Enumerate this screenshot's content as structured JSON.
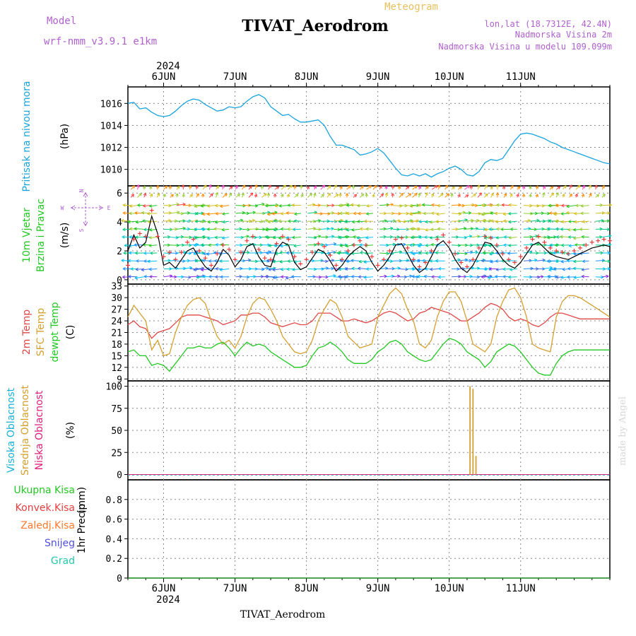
{
  "header": {
    "model_label": "Model",
    "model_name": "wrf-nmm_v3.9.1 e1km",
    "title": "TIVAT_Aerodrom",
    "meteogram_label": "Meteogram",
    "lonlat": "lon,lat (18.7312E, 42.4N)",
    "elev1": "Nadmorska Visina 2m",
    "elev2": "Nadmorska Visina u modelu 109.099m"
  },
  "footer": {
    "station": "TIVAT_Aerodrom",
    "credit": "made by Angel"
  },
  "time_axis": {
    "year": "2024",
    "days": [
      "6JUN",
      "7JUN",
      "8JUN",
      "9JUN",
      "10JUN",
      "11JUN"
    ],
    "range_hours": [
      -12,
      150
    ]
  },
  "colors": {
    "pressure": "#1aa3dd",
    "wind_speed": "#000000",
    "gust": "#e83c3c",
    "temp2m": "#e04848",
    "sfc_temp": "#d4a030",
    "dewpt": "#22c822",
    "cloud_mid": "#d4a030",
    "cloud_high": "#1ab0d8",
    "cloud_low": "#e0207a",
    "rain_total": "#22c822",
    "rain_conv": "#e83c3c",
    "rain_frz": "#ff7a2a",
    "snow": "#5050e0",
    "graupel": "#22c8a8",
    "header_purple": "#b060d0",
    "header_gold": "#e8c060"
  },
  "chart_data": [
    {
      "type": "line",
      "id": "pressure",
      "ylabel": "Pritisak na nivou mora",
      "unit": "(hPa)",
      "ylim": [
        1008.5,
        1017.5
      ],
      "yticks": [
        1010,
        1012,
        1014,
        1016
      ],
      "x": [
        -12,
        -10,
        -8,
        -6,
        -4,
        -2,
        0,
        2,
        4,
        6,
        8,
        10,
        12,
        14,
        16,
        18,
        20,
        22,
        24,
        26,
        28,
        30,
        32,
        34,
        36,
        38,
        40,
        42,
        44,
        46,
        48,
        50,
        52,
        54,
        56,
        58,
        60,
        62,
        64,
        66,
        68,
        70,
        72,
        74,
        76,
        78,
        80,
        82,
        84,
        86,
        88,
        90,
        92,
        94,
        96,
        98,
        100,
        102,
        104,
        106,
        108,
        110,
        112,
        114,
        116,
        118,
        120,
        122,
        124,
        126,
        128,
        130,
        132,
        134,
        136,
        138,
        140,
        142,
        144,
        146,
        148,
        150
      ],
      "series": [
        {
          "values": [
            1016.0,
            1016.1,
            1015.5,
            1015.6,
            1015.2,
            1014.9,
            1014.8,
            1014.9,
            1015.3,
            1015.8,
            1016.2,
            1016.4,
            1016.3,
            1015.9,
            1015.6,
            1015.3,
            1015.4,
            1015.7,
            1015.6,
            1015.7,
            1016.2,
            1016.6,
            1016.8,
            1016.5,
            1015.7,
            1015.3,
            1014.9,
            1015.0,
            1014.6,
            1014.3,
            1014.3,
            1014.4,
            1014.5,
            1014.0,
            1013.0,
            1012.2,
            1012.2,
            1012.0,
            1011.8,
            1011.3,
            1011.4,
            1011.6,
            1011.9,
            1011.5,
            1010.8,
            1010.1,
            1009.5,
            1009.4,
            1009.6,
            1009.4,
            1009.6,
            1009.3,
            1009.6,
            1009.8,
            1010.1,
            1010.3,
            1010.0,
            1009.5,
            1009.4,
            1009.8,
            1010.6,
            1010.9,
            1010.8,
            1011.0,
            1011.8,
            1012.6,
            1013.2,
            1013.3,
            1013.2,
            1013.0,
            1012.8,
            1012.5,
            1012.3,
            1012.0,
            1011.8,
            1011.6,
            1011.4,
            1011.2,
            1011.0,
            1010.8,
            1010.6,
            1010.5
          ]
        }
      ]
    },
    {
      "type": "line",
      "id": "wind",
      "ylabel": "10m Vjetar",
      "ylabel2": "Brzina i Pravac",
      "unit": "(m/s)",
      "ylim": [
        -0.3,
        6.5
      ],
      "yticks": [
        0,
        2,
        4,
        6
      ],
      "compass": {
        "n": "N",
        "w": "W",
        "e": "E",
        "s": "S"
      },
      "x": [
        -12,
        -10,
        -8,
        -6,
        -4,
        -2,
        0,
        2,
        4,
        6,
        8,
        10,
        12,
        14,
        16,
        18,
        20,
        22,
        24,
        26,
        28,
        30,
        32,
        34,
        36,
        38,
        40,
        42,
        44,
        46,
        48,
        50,
        52,
        54,
        56,
        58,
        60,
        62,
        64,
        66,
        68,
        70,
        72,
        74,
        76,
        78,
        80,
        82,
        84,
        86,
        88,
        90,
        92,
        94,
        96,
        98,
        100,
        102,
        104,
        106,
        108,
        110,
        112,
        114,
        116,
        118,
        120,
        122,
        124,
        126,
        128,
        130,
        132,
        134,
        136,
        138,
        140,
        142,
        144,
        146,
        148,
        150
      ],
      "series": [
        {
          "values": [
            2.0,
            3.1,
            2.2,
            2.6,
            4.4,
            3.2,
            1.0,
            1.2,
            0.8,
            1.4,
            2.0,
            2.2,
            1.5,
            0.9,
            0.6,
            1.2,
            2.1,
            1.7,
            0.9,
            1.4,
            2.3,
            2.5,
            1.6,
            1.0,
            0.9,
            2.1,
            2.6,
            2.4,
            1.2,
            0.7,
            0.9,
            1.5,
            2.1,
            1.9,
            1.3,
            0.6,
            1.0,
            1.6,
            2.0,
            2.3,
            2.0,
            1.2,
            0.6,
            1.0,
            1.6,
            2.4,
            2.5,
            1.8,
            1.0,
            0.5,
            0.8,
            1.6,
            2.4,
            2.7,
            2.2,
            1.4,
            0.8,
            0.5,
            1.0,
            1.8,
            2.6,
            2.5,
            2.0,
            1.4,
            1.0,
            0.8,
            1.2,
            1.8,
            2.4,
            2.6,
            2.2,
            1.8,
            1.6,
            1.5,
            1.4,
            1.6,
            1.8,
            2.0,
            2.2,
            2.3,
            2.4,
            2.3
          ]
        },
        {
          "values": [
            1.0,
            2.8,
            3.2,
            3.0,
            4.8,
            3.0,
            1.6,
            1.9,
            1.4,
            1.9,
            2.6,
            2.8,
            2.0,
            1.5,
            1.0,
            1.8,
            2.4,
            2.1,
            1.4,
            1.9,
            2.7,
            3.0,
            2.1,
            1.5,
            1.4,
            2.5,
            3.0,
            2.8,
            1.6,
            1.1,
            1.4,
            1.9,
            2.5,
            2.3,
            1.7,
            1.0,
            1.4,
            2.0,
            2.4,
            2.7,
            2.4,
            1.6,
            1.0,
            1.4,
            2.0,
            2.8,
            2.9,
            2.2,
            1.4,
            0.9,
            1.2,
            2.0,
            2.8,
            3.1,
            2.6,
            1.8,
            1.2,
            0.9,
            1.4,
            2.2,
            3.0,
            2.9,
            2.4,
            1.8,
            1.4,
            1.2,
            1.6,
            2.2,
            2.8,
            3.0,
            2.6,
            2.2,
            2.0,
            1.9,
            1.8,
            2.0,
            2.2,
            2.4,
            2.6,
            2.7,
            2.8,
            2.7
          ]
        }
      ]
    },
    {
      "type": "line",
      "id": "temperature",
      "ylabel": "2m Temp",
      "ylabel2": "SFC Temp",
      "ylabel3": "dewpt Temp",
      "unit": "(C)",
      "ylim": [
        8.5,
        33.5
      ],
      "yticks": [
        9,
        12,
        15,
        18,
        21,
        24,
        27,
        30,
        33
      ],
      "x": [
        -12,
        -10,
        -8,
        -6,
        -4,
        -2,
        0,
        2,
        4,
        6,
        8,
        10,
        12,
        14,
        16,
        18,
        20,
        22,
        24,
        26,
        28,
        30,
        32,
        34,
        36,
        38,
        40,
        42,
        44,
        46,
        48,
        50,
        52,
        54,
        56,
        58,
        60,
        62,
        64,
        66,
        68,
        70,
        72,
        74,
        76,
        78,
        80,
        82,
        84,
        86,
        88,
        90,
        92,
        94,
        96,
        98,
        100,
        102,
        104,
        106,
        108,
        110,
        112,
        114,
        116,
        118,
        120,
        122,
        124,
        126,
        128,
        130,
        132,
        134,
        136,
        138,
        140,
        142,
        144,
        146,
        148,
        150
      ],
      "series": [
        {
          "values": [
            23,
            24,
            22.5,
            22,
            19.5,
            21,
            21.5,
            22,
            23.5,
            25,
            25.5,
            25.5,
            25.5,
            25,
            24.5,
            24,
            23,
            23.5,
            24,
            25.5,
            25.5,
            26,
            26,
            25,
            23.5,
            23,
            22.5,
            23,
            23.5,
            23,
            23,
            24,
            26,
            26,
            26,
            25,
            24,
            24,
            24.5,
            24,
            23.5,
            24,
            25,
            26,
            26.5,
            26,
            25,
            24,
            24.5,
            26,
            26.5,
            27.5,
            27,
            26.5,
            26,
            25,
            24,
            24,
            25,
            26,
            27.5,
            28.5,
            28,
            27,
            25,
            24,
            24.5,
            24,
            23,
            22.5,
            23.5,
            25,
            26,
            26,
            25.5,
            25,
            24.5,
            24.5,
            24.5,
            24.5,
            24.5,
            24.5
          ]
        },
        {
          "values": [
            25,
            28,
            26,
            24,
            16.5,
            19,
            15,
            15.5,
            21,
            25,
            28,
            29.5,
            30,
            28.5,
            24,
            20,
            18,
            19,
            17,
            20,
            25,
            28.5,
            30,
            29.5,
            27,
            24,
            20,
            18,
            16,
            15.5,
            16,
            19,
            24,
            27,
            29.5,
            28.5,
            25,
            20,
            18.5,
            17,
            17.5,
            18,
            25,
            28,
            31,
            32.5,
            31,
            27,
            24,
            18,
            17,
            19,
            25,
            29,
            31.5,
            31.5,
            29,
            24,
            18,
            17,
            16,
            18,
            25,
            29,
            32,
            32.5,
            30,
            25,
            18,
            17,
            16.5,
            16,
            25,
            29,
            30.5,
            30.5,
            30,
            29,
            28,
            27,
            26,
            25
          ]
        },
        {
          "values": [
            16,
            16.5,
            15,
            15,
            12.5,
            13,
            12.5,
            11,
            13,
            15,
            17,
            17,
            17.5,
            17,
            17,
            18,
            18.5,
            17,
            15,
            17,
            18.5,
            17.5,
            18,
            17.5,
            16,
            15,
            14,
            13,
            12,
            12,
            12.5,
            15,
            17,
            17.5,
            18.5,
            17.5,
            16,
            14,
            13,
            13,
            13,
            14,
            16,
            17,
            18.5,
            19,
            18,
            16,
            15,
            14,
            13.5,
            14,
            16,
            18,
            19.5,
            19,
            18,
            16,
            15,
            14,
            12,
            13.5,
            16,
            17,
            18,
            17.5,
            16,
            14,
            12,
            10.5,
            10,
            10,
            13,
            15,
            16,
            16.5,
            16.5,
            16.5,
            16.5,
            16.5,
            16.5,
            16.5
          ]
        }
      ]
    },
    {
      "type": "bar",
      "id": "cloud",
      "ylabel": "Visoka Oblacnost",
      "ylabel2": "Srednja Oblacnost",
      "ylabel3": "Niska Oblacnost",
      "unit": "(%)",
      "ylim": [
        -6,
        106
      ],
      "yticks": [
        0,
        25,
        50,
        75,
        100
      ],
      "bars": [
        {
          "x": 103,
          "value": 100
        },
        {
          "x": 104,
          "value": 97
        },
        {
          "x": 105,
          "value": 21
        }
      ]
    },
    {
      "type": "line",
      "id": "precip",
      "ylabel": "1hr Precip",
      "unit": "(mm)",
      "ylim": [
        0,
        1
      ],
      "yticks": [
        0,
        0.2,
        0.4,
        0.6,
        0.8
      ],
      "ytick_labels": [
        "0",
        "0.2",
        "0.4",
        "0.6",
        "0.8"
      ],
      "legend": [
        "Ukupna Kisa",
        "Konvek.Kisa",
        "Zaledj.Kisa",
        "Snijeg",
        "Grad"
      ]
    }
  ]
}
